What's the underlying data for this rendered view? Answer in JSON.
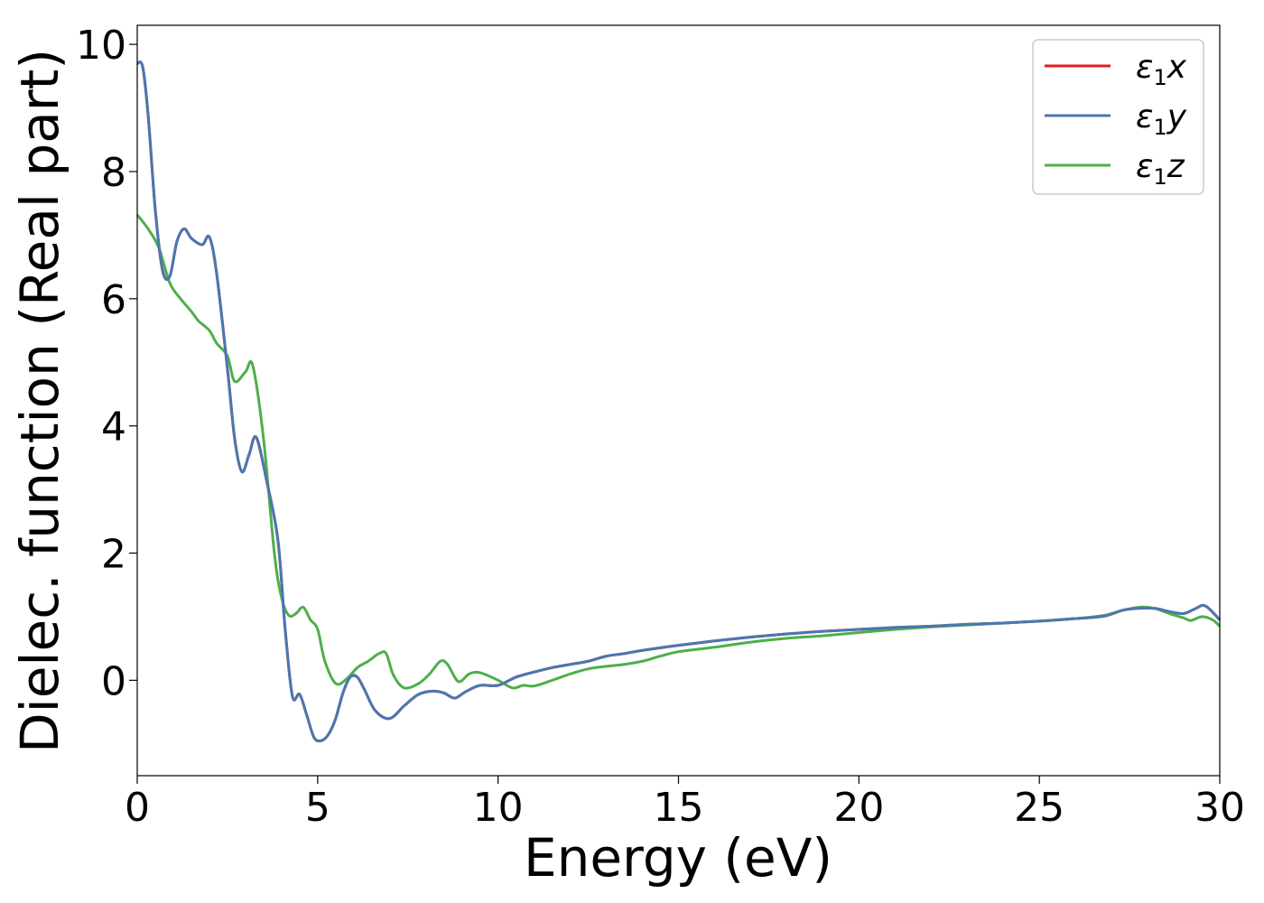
{
  "chart_data": {
    "type": "line",
    "title": "",
    "xlabel": "Energy (eV)",
    "ylabel": "Dielec. function (Real part)",
    "xlim": [
      0,
      30
    ],
    "ylim": [
      -1.5,
      10.3
    ],
    "xticks": [
      0,
      5,
      10,
      15,
      20,
      25,
      30
    ],
    "xtick_labels": [
      "0",
      "5",
      "10",
      "15",
      "20",
      "25",
      "30"
    ],
    "yticks": [
      0,
      2,
      4,
      6,
      8,
      10
    ],
    "ytick_labels": [
      "0",
      "2",
      "4",
      "6",
      "8",
      "10"
    ],
    "grid": false,
    "legend_position": "top-right",
    "series": [
      {
        "name": "ε1x",
        "legend_main": "ε",
        "legend_sub": "1",
        "legend_var": "x",
        "color": "#e41a1c",
        "x": [
          0,
          0.15,
          0.3,
          0.5,
          0.7,
          0.9,
          1.1,
          1.3,
          1.5,
          1.8,
          2.0,
          2.2,
          2.5,
          2.7,
          2.9,
          3.1,
          3.3,
          3.6,
          3.9,
          4.1,
          4.3,
          4.5,
          4.7,
          4.9,
          5.1,
          5.3,
          5.5,
          5.7,
          5.9,
          6.1,
          6.3,
          6.6,
          7.0,
          7.4,
          7.8,
          8.2,
          8.5,
          8.8,
          9.1,
          9.5,
          10.0,
          10.5,
          11.0,
          11.5,
          12.0,
          12.5,
          13.0,
          13.5,
          14.0,
          15.0,
          16.0,
          17.0,
          18.0,
          19.0,
          20.0,
          21.0,
          22.0,
          23.0,
          24.0,
          25.0,
          26.0,
          26.8,
          27.3,
          27.7,
          28.2,
          28.6,
          29.0,
          29.3,
          29.6,
          30.0
        ],
        "y": [
          9.7,
          9.65,
          8.9,
          7.4,
          6.45,
          6.35,
          6.9,
          7.1,
          6.95,
          6.85,
          6.97,
          6.4,
          4.9,
          3.8,
          3.28,
          3.55,
          3.82,
          3.1,
          2.2,
          0.8,
          -0.25,
          -0.22,
          -0.55,
          -0.9,
          -0.95,
          -0.85,
          -0.6,
          -0.2,
          0.05,
          0.05,
          -0.15,
          -0.48,
          -0.6,
          -0.4,
          -0.22,
          -0.17,
          -0.2,
          -0.28,
          -0.18,
          -0.08,
          -0.08,
          0.05,
          0.13,
          0.2,
          0.25,
          0.3,
          0.38,
          0.42,
          0.47,
          0.55,
          0.62,
          0.68,
          0.73,
          0.77,
          0.8,
          0.83,
          0.85,
          0.88,
          0.9,
          0.93,
          0.97,
          1.01,
          1.1,
          1.13,
          1.13,
          1.08,
          1.05,
          1.12,
          1.17,
          0.95
        ]
      },
      {
        "name": "ε1y",
        "legend_main": "ε",
        "legend_sub": "1",
        "legend_var": "y",
        "color": "#4a77b0",
        "x": [
          0,
          0.15,
          0.3,
          0.5,
          0.7,
          0.9,
          1.1,
          1.3,
          1.5,
          1.8,
          2.0,
          2.2,
          2.5,
          2.7,
          2.9,
          3.1,
          3.3,
          3.6,
          3.9,
          4.1,
          4.3,
          4.5,
          4.7,
          4.9,
          5.1,
          5.3,
          5.5,
          5.7,
          5.9,
          6.1,
          6.3,
          6.6,
          7.0,
          7.4,
          7.8,
          8.2,
          8.5,
          8.8,
          9.1,
          9.5,
          10.0,
          10.5,
          11.0,
          11.5,
          12.0,
          12.5,
          13.0,
          13.5,
          14.0,
          15.0,
          16.0,
          17.0,
          18.0,
          19.0,
          20.0,
          21.0,
          22.0,
          23.0,
          24.0,
          25.0,
          26.0,
          26.8,
          27.3,
          27.7,
          28.2,
          28.6,
          29.0,
          29.3,
          29.6,
          30.0
        ],
        "y": [
          9.7,
          9.65,
          8.9,
          7.4,
          6.45,
          6.35,
          6.9,
          7.1,
          6.95,
          6.85,
          6.97,
          6.4,
          4.9,
          3.8,
          3.28,
          3.55,
          3.82,
          3.1,
          2.2,
          0.8,
          -0.25,
          -0.22,
          -0.55,
          -0.9,
          -0.95,
          -0.85,
          -0.6,
          -0.2,
          0.05,
          0.05,
          -0.15,
          -0.48,
          -0.6,
          -0.4,
          -0.22,
          -0.17,
          -0.2,
          -0.28,
          -0.18,
          -0.08,
          -0.08,
          0.05,
          0.13,
          0.2,
          0.25,
          0.3,
          0.38,
          0.42,
          0.47,
          0.55,
          0.62,
          0.68,
          0.73,
          0.77,
          0.8,
          0.83,
          0.85,
          0.88,
          0.9,
          0.93,
          0.97,
          1.01,
          1.1,
          1.13,
          1.13,
          1.08,
          1.05,
          1.12,
          1.17,
          0.95
        ]
      },
      {
        "name": "ε1z",
        "legend_main": "ε",
        "legend_sub": "1",
        "legend_var": "z",
        "color": "#4daf4a",
        "x": [
          0,
          0.3,
          0.6,
          0.9,
          1.2,
          1.5,
          1.7,
          2.0,
          2.2,
          2.5,
          2.7,
          3.0,
          3.2,
          3.5,
          3.8,
          4.0,
          4.2,
          4.4,
          4.6,
          4.8,
          5.0,
          5.2,
          5.5,
          5.8,
          6.1,
          6.4,
          6.7,
          6.9,
          7.1,
          7.4,
          7.8,
          8.1,
          8.4,
          8.6,
          8.9,
          9.2,
          9.5,
          10.0,
          10.4,
          10.7,
          11.0,
          11.5,
          12.0,
          12.5,
          13.0,
          13.5,
          14.0,
          14.5,
          15.0,
          16.0,
          17.0,
          18.0,
          19.0,
          20.0,
          21.0,
          22.0,
          23.0,
          24.0,
          25.0,
          26.0,
          26.8,
          27.3,
          27.8,
          28.2,
          28.6,
          29.0,
          29.2,
          29.5,
          29.8,
          30.0
        ],
        "y": [
          7.32,
          7.1,
          6.8,
          6.25,
          6.0,
          5.8,
          5.65,
          5.5,
          5.3,
          5.1,
          4.7,
          4.85,
          4.95,
          3.8,
          2.0,
          1.3,
          1.02,
          1.05,
          1.15,
          0.95,
          0.8,
          0.3,
          -0.05,
          0.02,
          0.2,
          0.3,
          0.42,
          0.42,
          0.08,
          -0.12,
          -0.05,
          0.1,
          0.3,
          0.25,
          -0.02,
          0.1,
          0.12,
          0.0,
          -0.12,
          -0.08,
          -0.09,
          0.0,
          0.1,
          0.18,
          0.22,
          0.25,
          0.3,
          0.38,
          0.45,
          0.52,
          0.6,
          0.66,
          0.7,
          0.75,
          0.8,
          0.84,
          0.87,
          0.9,
          0.93,
          0.97,
          1.02,
          1.1,
          1.15,
          1.13,
          1.05,
          0.98,
          0.94,
          1.0,
          0.95,
          0.85
        ]
      }
    ]
  }
}
